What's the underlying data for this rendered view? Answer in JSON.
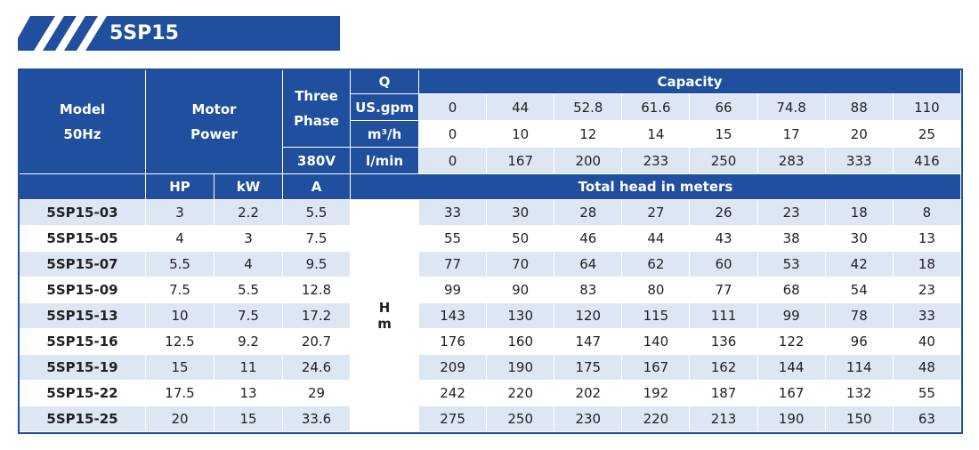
{
  "title": "5SP15",
  "header": {
    "model": [
      "Model",
      "50Hz"
    ],
    "motor": [
      "Motor",
      "Power"
    ],
    "phase": [
      "Three",
      "Phase"
    ],
    "voltage": "380V",
    "q": "Q",
    "capacity": "Capacity",
    "hp": "HP",
    "kw": "kW",
    "a": "A",
    "total_head": "Total head in meters",
    "h_unit": [
      "H",
      "m"
    ]
  },
  "flow_rows": [
    {
      "unit": "US.gpm",
      "values": [
        0,
        44,
        52.8,
        61.6,
        66,
        74.8,
        88,
        110
      ]
    },
    {
      "unit": "m³/h",
      "values": [
        0,
        10,
        12,
        14,
        15,
        17,
        20,
        25
      ]
    },
    {
      "unit": "l/min",
      "values": [
        0,
        167,
        200,
        233,
        250,
        283,
        333,
        416
      ]
    }
  ],
  "models": [
    {
      "name": "5SP15-03",
      "hp": 3,
      "kw": 2.2,
      "a": 5.5,
      "head": [
        33,
        30,
        28,
        27,
        26,
        23,
        18,
        8
      ]
    },
    {
      "name": "5SP15-05",
      "hp": 4,
      "kw": 3,
      "a": 7.5,
      "head": [
        55,
        50,
        46,
        44,
        43,
        38,
        30,
        13
      ]
    },
    {
      "name": "5SP15-07",
      "hp": 5.5,
      "kw": 4,
      "a": 9.5,
      "head": [
        77,
        70,
        64,
        62,
        60,
        53,
        42,
        18
      ]
    },
    {
      "name": "5SP15-09",
      "hp": 7.5,
      "kw": 5.5,
      "a": 12.8,
      "head": [
        99,
        90,
        83,
        80,
        77,
        68,
        54,
        23
      ]
    },
    {
      "name": "5SP15-13",
      "hp": 10,
      "kw": 7.5,
      "a": 17.2,
      "head": [
        143,
        130,
        120,
        115,
        111,
        99,
        78,
        33
      ]
    },
    {
      "name": "5SP15-16",
      "hp": 12.5,
      "kw": 9.2,
      "a": 20.7,
      "head": [
        176,
        160,
        147,
        140,
        136,
        122,
        96,
        40
      ]
    },
    {
      "name": "5SP15-19",
      "hp": 15,
      "kw": 11,
      "a": 24.6,
      "head": [
        209,
        190,
        175,
        167,
        162,
        144,
        114,
        48
      ]
    },
    {
      "name": "5SP15-22",
      "hp": 17.5,
      "kw": 13,
      "a": 29,
      "head": [
        242,
        220,
        202,
        192,
        187,
        167,
        132,
        55
      ]
    },
    {
      "name": "5SP15-25",
      "hp": 20,
      "kw": 15,
      "a": 33.6,
      "head": [
        275,
        250,
        230,
        220,
        213,
        190,
        150,
        63
      ]
    }
  ]
}
